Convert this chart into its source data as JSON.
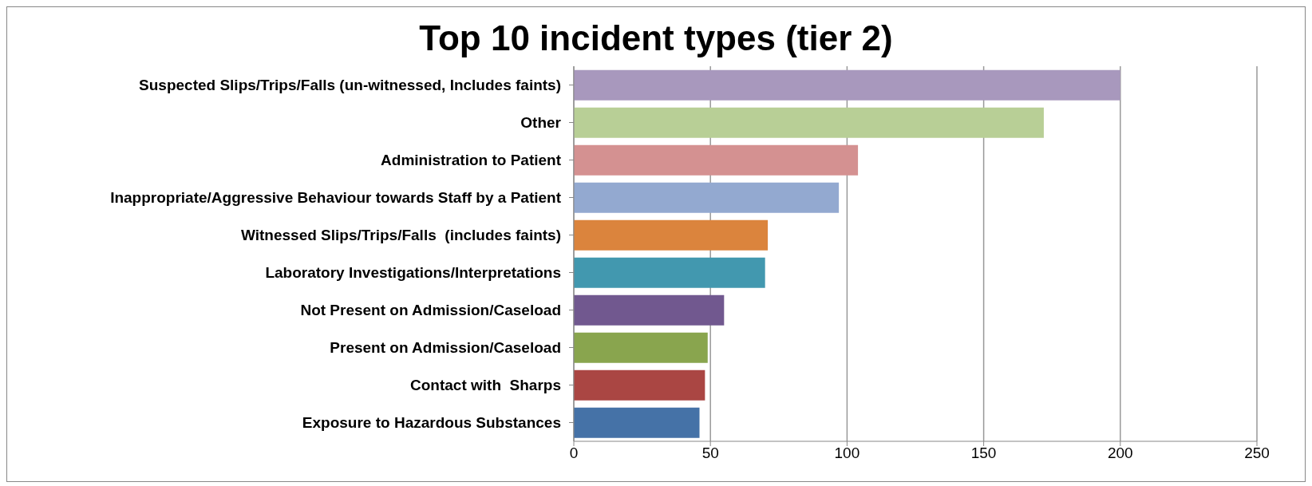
{
  "chart_data": {
    "type": "bar",
    "orientation": "horizontal",
    "title": "Top 10 incident types (tier 2)",
    "categories": [
      "Suspected Slips/Trips/Falls (un-witnessed, Includes faints)",
      "Other",
      "Administration to Patient",
      "Inappropriate/Aggressive Behaviour towards Staff by a Patient",
      "Witnessed Slips/Trips/Falls  (includes faints)",
      "Laboratory Investigations/Interpretations",
      "Not Present on Admission/Caseload",
      "Present on Admission/Caseload",
      "Contact with  Sharps",
      "Exposure to Hazardous Substances"
    ],
    "values": [
      200,
      172,
      104,
      97,
      71,
      70,
      55,
      49,
      48,
      46
    ],
    "colors": [
      "#a898bd",
      "#b8cf96",
      "#d49191",
      "#93a9d0",
      "#db843d",
      "#4298af",
      "#71588f",
      "#89a54e",
      "#aa4643",
      "#4572a7"
    ],
    "xlim": [
      0,
      250
    ],
    "xticks": [
      0,
      50,
      100,
      150,
      200,
      250
    ],
    "grid": "x"
  }
}
